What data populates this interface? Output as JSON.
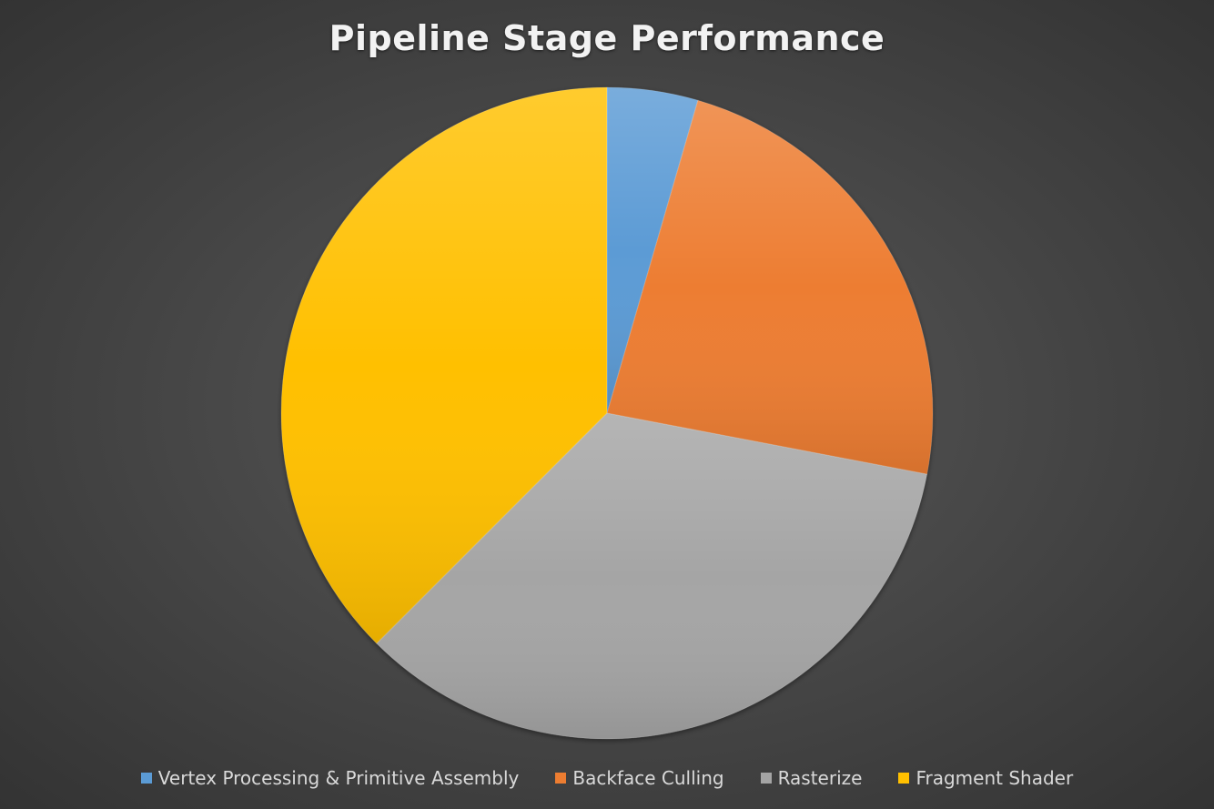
{
  "chart_data": {
    "type": "pie",
    "title": "Pipeline Stage Performance",
    "categories": [
      "Vertex Processing & Primitive Assembly",
      "Backface Culling",
      "Rasterize",
      "Fragment Shader"
    ],
    "values": [
      4.5,
      23.5,
      34.5,
      37.5
    ],
    "colors": [
      "#5b9bd5",
      "#ed7d31",
      "#a5a5a5",
      "#ffc000"
    ],
    "legend_position": "bottom",
    "start_angle": "12 o'clock",
    "direction": "clockwise"
  }
}
